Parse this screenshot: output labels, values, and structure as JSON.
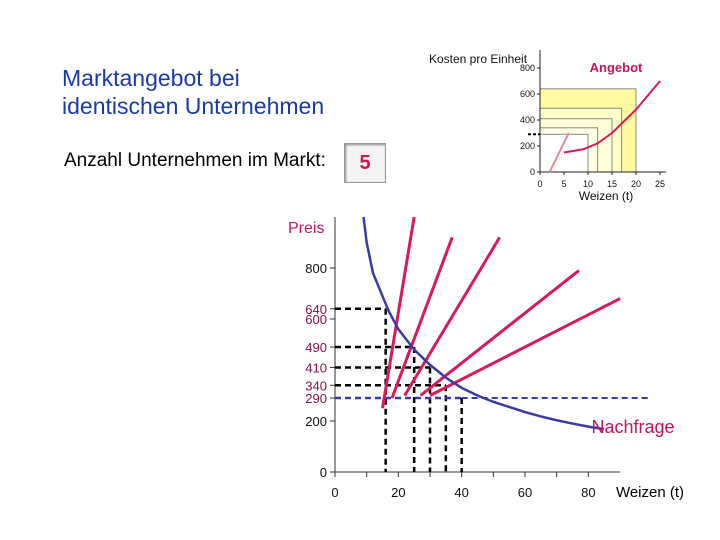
{
  "title_line1": "Marktangebot bei",
  "title_line2": "identischen Unternehmen",
  "firm_count_label": "Anzahl Unternehmen im Markt:",
  "firm_count": "5",
  "chart_data": [
    {
      "type": "line",
      "title": "",
      "ylabel": "Kosten pro Einheit",
      "xlabel": "Weizen (t)",
      "series_label": "Angebot",
      "xlim": [
        0,
        25
      ],
      "ylim": [
        0,
        900
      ],
      "x_ticks": [
        "0",
        "5",
        "10",
        "15",
        "20",
        "25"
      ],
      "y_ticks": [
        "0",
        "200",
        "400",
        "600",
        "800"
      ],
      "series": [
        {
          "x": [
            2,
            6
          ],
          "y": [
            0,
            300
          ]
        },
        {
          "x": [
            5,
            9,
            12,
            15,
            20,
            25
          ],
          "y": [
            150,
            175,
            220,
            300,
            480,
            700
          ]
        }
      ],
      "cost_boxes": [
        {
          "x": 20,
          "y": 640
        },
        {
          "x": 17,
          "y": 490
        },
        {
          "x": 15,
          "y": 410
        },
        {
          "x": 12,
          "y": 340
        },
        {
          "x": 10,
          "y": 290
        }
      ]
    },
    {
      "type": "line",
      "title": "",
      "ylabel": "Preis",
      "xlabel": "Weizen (t)",
      "demand_label": "Nachfrage",
      "xlim": [
        0,
        90
      ],
      "ylim": [
        0,
        1000
      ],
      "x_ticks": [
        "0",
        "20",
        "40",
        "60",
        "80"
      ],
      "y_ticks": [
        "0",
        "200",
        "800"
      ],
      "y_ticks_highlight": [
        "640",
        "600",
        "490",
        "410",
        "340",
        "290"
      ],
      "demand": {
        "x": [
          9,
          10,
          12,
          15,
          17,
          20,
          25,
          30,
          35,
          40,
          45,
          50,
          55,
          60,
          65,
          70,
          75,
          80,
          85
        ],
        "y": [
          1000,
          900,
          780,
          690,
          630,
          560,
          480,
          420,
          370,
          330,
          300,
          275,
          255,
          235,
          218,
          203,
          190,
          178,
          168
        ]
      },
      "supply": [
        {
          "x": [
            15,
            25
          ],
          "y": [
            250,
            1000
          ]
        },
        {
          "x": [
            18,
            37
          ],
          "y": [
            290,
            920
          ]
        },
        {
          "x": [
            22,
            52
          ],
          "y": [
            300,
            920
          ]
        },
        {
          "x": [
            27,
            77
          ],
          "y": [
            300,
            790
          ]
        },
        {
          "x": [
            30,
            90
          ],
          "y": [
            300,
            680
          ]
        }
      ],
      "equilibria": [
        {
          "x": 16,
          "y": 640
        },
        {
          "x": 25,
          "y": 490
        },
        {
          "x": 30,
          "y": 410
        },
        {
          "x": 35,
          "y": 340
        },
        {
          "x": 40,
          "y": 290
        }
      ]
    }
  ]
}
